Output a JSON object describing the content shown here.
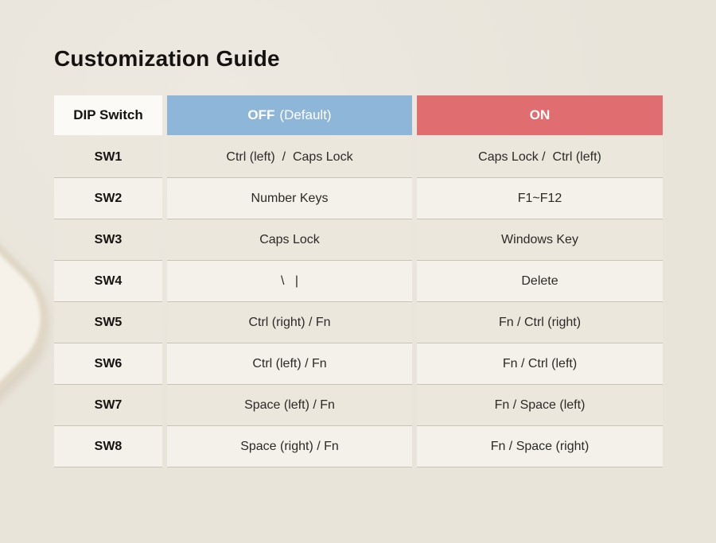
{
  "page": {
    "title": "Customization Guide",
    "background_color": "#e9e4da"
  },
  "table": {
    "header": {
      "dip_switch": "DIP Switch",
      "off_bold": "OFF",
      "off_rest": "(Default)",
      "on": "ON"
    },
    "rows": [
      {
        "switch": "SW1",
        "off": "Ctrl (left)  /  Caps Lock",
        "on": "Caps Lock /  Ctrl (left)"
      },
      {
        "switch": "SW2",
        "off": "Number Keys",
        "on": "F1~F12"
      },
      {
        "switch": "SW3",
        "off": "Caps Lock",
        "on": "Windows Key"
      },
      {
        "switch": "SW4",
        "off": "\\   |",
        "on": "Delete"
      },
      {
        "switch": "SW5",
        "off": "Ctrl (right) / Fn",
        "on": "Fn / Ctrl (right)"
      },
      {
        "switch": "SW6",
        "off": "Ctrl (left) / Fn",
        "on": "Fn / Ctrl (left)"
      },
      {
        "switch": "SW7",
        "off": "Space (left) / Fn",
        "on": "Fn / Space (left)"
      },
      {
        "switch": "SW8",
        "off": "Space (right) / Fn",
        "on": "Fn / Space (right)"
      }
    ],
    "colors": {
      "off_header_bg": "#8eb6d9",
      "on_header_bg": "#e06d6f",
      "dip_header_bg": "#fbfaf6",
      "odd_row_bg": "#ece7dd",
      "even_row_bg": "#f4f1ea",
      "separator": "#c8c3b9",
      "header_text": "#ffffff",
      "body_text": "#2b2a26"
    }
  }
}
